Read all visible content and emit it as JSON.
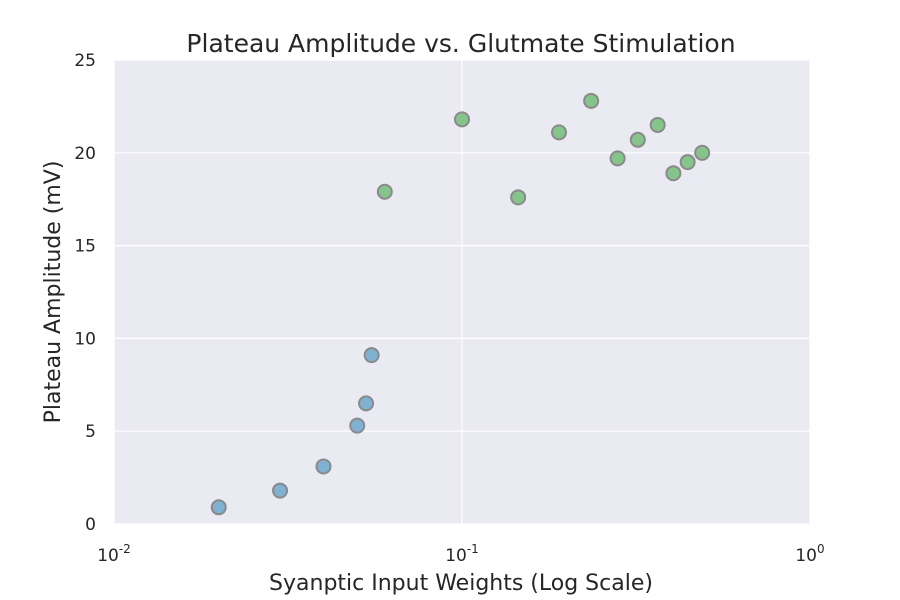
{
  "chart_data": {
    "type": "scatter",
    "title": "Plateau Amplitude vs. Glutmate Stimulation",
    "xlabel": "Syanptic Input Weights (Log Scale)",
    "ylabel": "Plateau Amplitude (mV)",
    "xscale": "log",
    "xlim": [
      0.01,
      1
    ],
    "ylim": [
      0,
      25
    ],
    "grid": true,
    "background": "#eaeaf2",
    "x_ticks": [
      {
        "value": 0.01,
        "base": "10",
        "exp": "-2"
      },
      {
        "value": 0.1,
        "base": "10",
        "exp": "-1"
      },
      {
        "value": 1,
        "base": "10",
        "exp": "0"
      }
    ],
    "y_ticks": [
      {
        "value": 0,
        "label": "0"
      },
      {
        "value": 5,
        "label": "5"
      },
      {
        "value": 10,
        "label": "10"
      },
      {
        "value": 15,
        "label": "15"
      },
      {
        "value": 20,
        "label": "20"
      },
      {
        "value": 25,
        "label": "25"
      }
    ],
    "series": [
      {
        "color": "#7fb1d3",
        "points": [
          {
            "x": 0.02,
            "y": 0.9
          },
          {
            "x": 0.03,
            "y": 1.8
          },
          {
            "x": 0.04,
            "y": 3.1
          },
          {
            "x": 0.05,
            "y": 5.3
          },
          {
            "x": 0.053,
            "y": 6.5
          },
          {
            "x": 0.055,
            "y": 9.1
          }
        ]
      },
      {
        "color": "#85c48a",
        "points": [
          {
            "x": 0.06,
            "y": 17.9
          },
          {
            "x": 0.1,
            "y": 21.8
          },
          {
            "x": 0.145,
            "y": 17.6
          },
          {
            "x": 0.19,
            "y": 21.1
          },
          {
            "x": 0.235,
            "y": 22.8
          },
          {
            "x": 0.28,
            "y": 19.7
          },
          {
            "x": 0.32,
            "y": 20.7
          },
          {
            "x": 0.365,
            "y": 21.5
          },
          {
            "x": 0.405,
            "y": 18.9
          },
          {
            "x": 0.445,
            "y": 19.5
          },
          {
            "x": 0.49,
            "y": 20.0
          }
        ]
      }
    ]
  }
}
